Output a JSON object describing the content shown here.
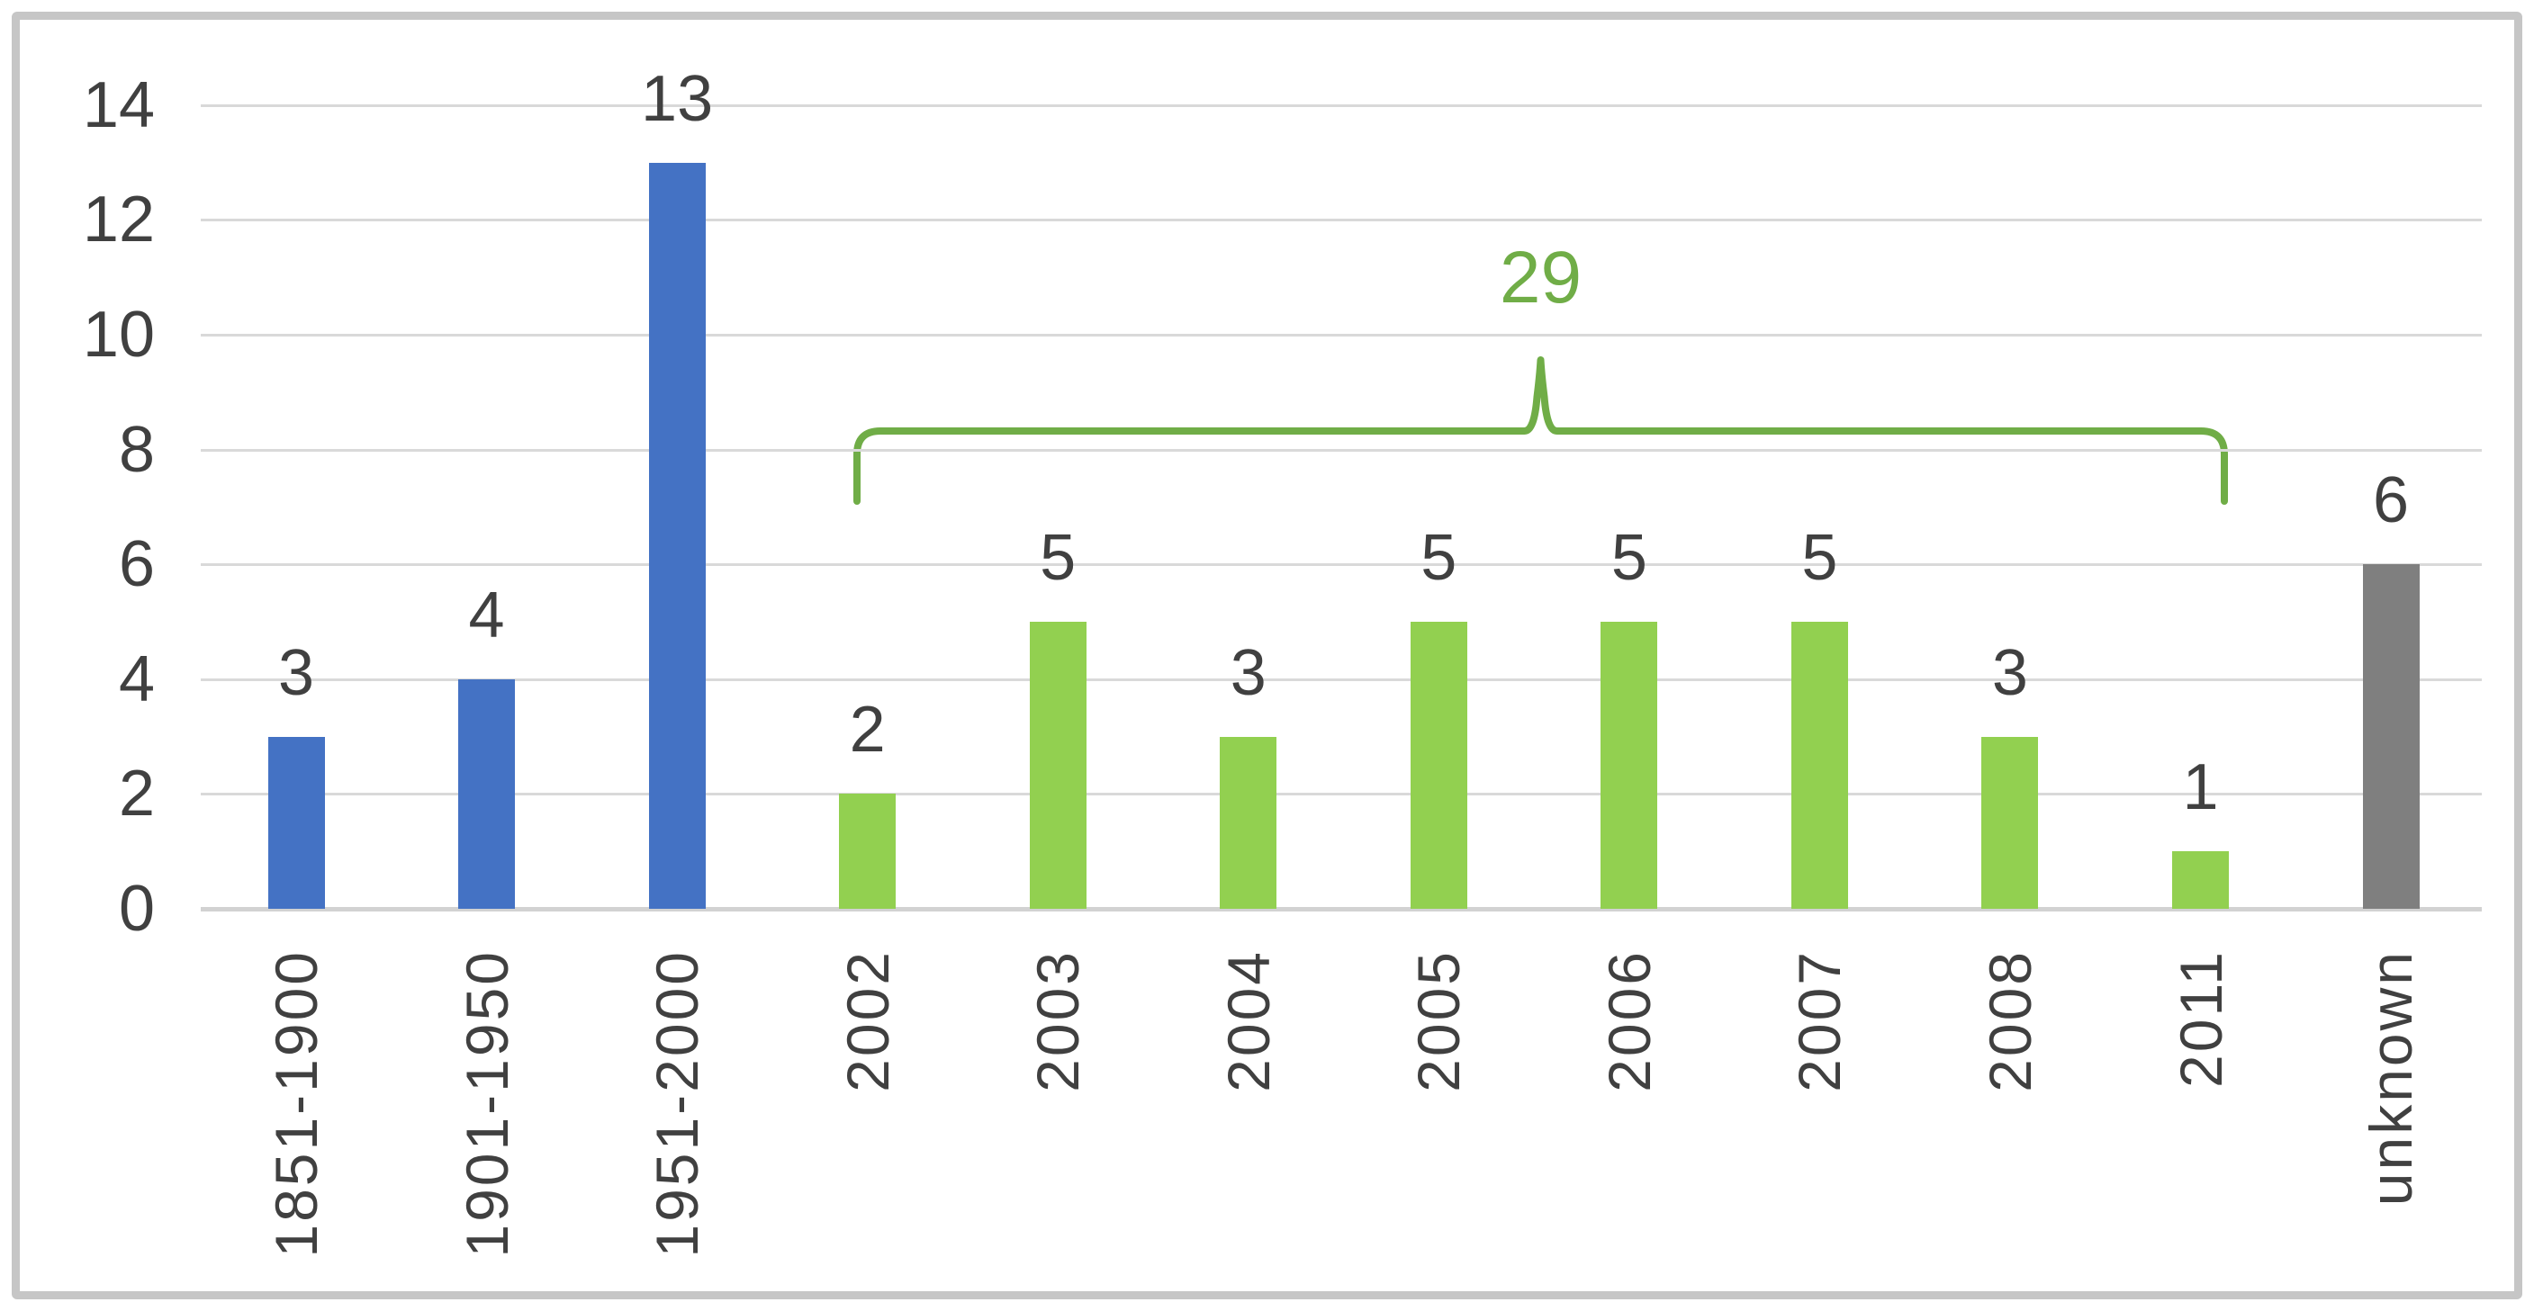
{
  "chart_data": {
    "type": "bar",
    "categories": [
      "1851-1900",
      "1901-1950",
      "1951-2000",
      "2002",
      "2003",
      "2004",
      "2005",
      "2006",
      "2007",
      "2008",
      "2011",
      "unknown"
    ],
    "values": [
      3,
      4,
      13,
      2,
      5,
      3,
      5,
      5,
      5,
      3,
      1,
      6
    ],
    "bar_color_keys": [
      "blue",
      "blue",
      "blue",
      "green",
      "green",
      "green",
      "green",
      "green",
      "green",
      "green",
      "green",
      "gray"
    ],
    "data_labels": [
      "3",
      "4",
      "13",
      "2",
      "5",
      "3",
      "5",
      "5",
      "5",
      "3",
      "1",
      "6"
    ],
    "title": "",
    "xlabel": "",
    "ylabel": "",
    "ylim": [
      0,
      14
    ],
    "yticks": [
      0,
      2,
      4,
      6,
      8,
      10,
      12,
      14
    ],
    "grid": true,
    "legend": false,
    "annotation": {
      "label": "29",
      "type": "brace",
      "spans_categories": [
        "2002",
        "2003",
        "2004",
        "2005",
        "2006",
        "2007",
        "2008",
        "2011"
      ],
      "meaning": "sum of green bars"
    }
  },
  "colors": {
    "blue": "#4472C4",
    "green": "#92D050",
    "gray": "#7F7F7F",
    "brace": "#70AD47",
    "annotation_text": "#70AD47",
    "gridline": "#D9D9D9",
    "axis_line": "#D2D2D2",
    "text": "#404040",
    "frame_border": "#C6C6C6",
    "background": "#FFFFFF"
  }
}
